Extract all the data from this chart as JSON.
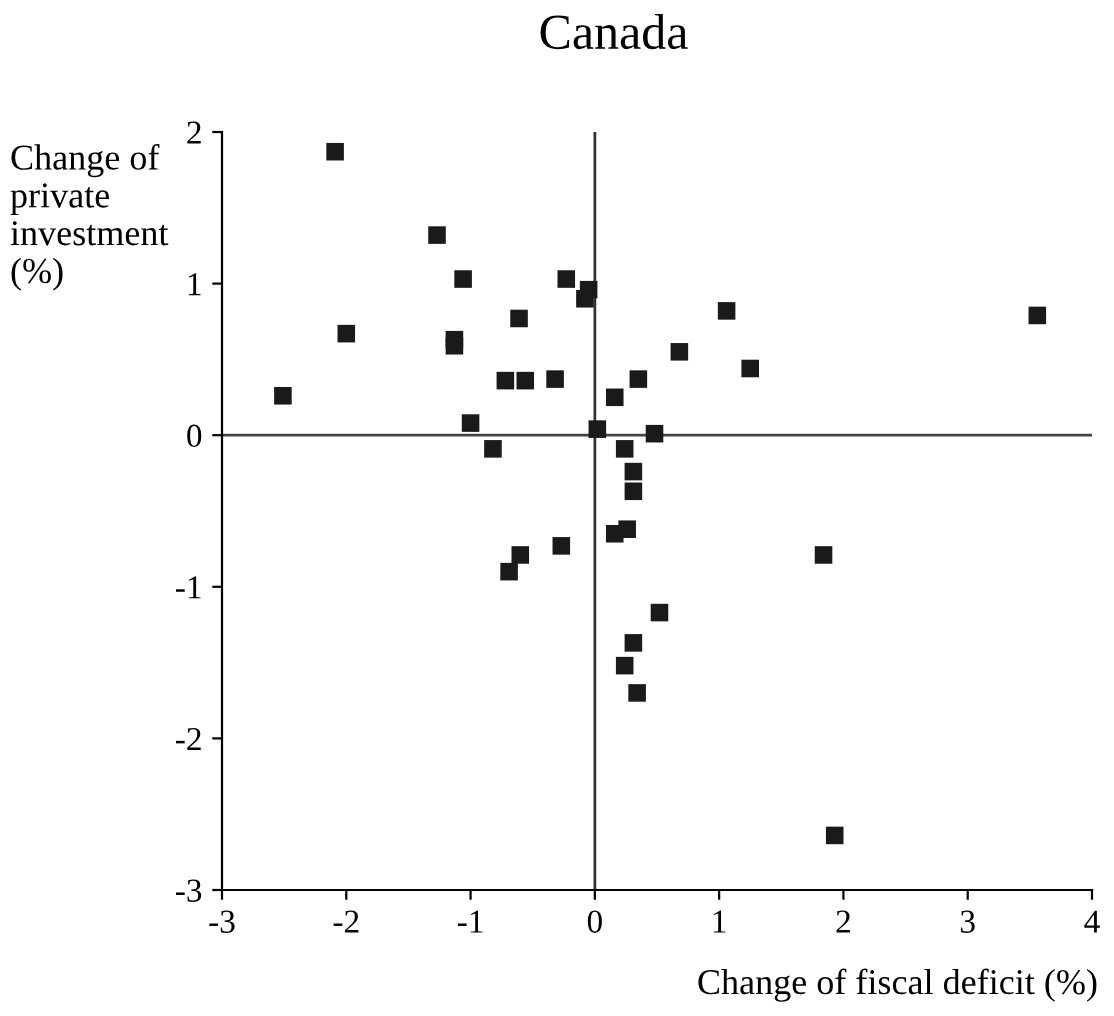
{
  "chart_data": {
    "type": "scatter",
    "title": "Canada",
    "xlabel": "Change of fiscal deficit (%)",
    "ylabel": "Change of\nprivate\ninvestment\n(%)",
    "x": [
      -2.09,
      -1.27,
      -1.06,
      -2.0,
      -1.13,
      -1.13,
      -2.51,
      -0.61,
      -0.23,
      -0.05,
      -0.08,
      -1.0,
      -0.82,
      -0.72,
      -0.56,
      -0.32,
      0.02,
      0.16,
      0.35,
      0.48,
      0.68,
      1.06,
      1.25,
      3.56,
      0.24,
      0.31,
      0.31,
      0.16,
      0.26,
      -0.27,
      -0.6,
      -0.69,
      1.84,
      0.52,
      0.31,
      0.24,
      0.34,
      1.93
    ],
    "values": [
      1.87,
      1.32,
      1.03,
      0.67,
      0.63,
      0.59,
      0.26,
      0.77,
      1.03,
      0.96,
      0.9,
      0.08,
      -0.09,
      0.36,
      0.36,
      0.37,
      0.04,
      0.25,
      0.37,
      0.01,
      0.55,
      0.82,
      0.44,
      0.79,
      -0.09,
      -0.24,
      -0.37,
      -0.65,
      -0.62,
      -0.73,
      -0.79,
      -0.9,
      -0.79,
      -1.17,
      -1.37,
      -1.52,
      -1.7,
      -2.64
    ],
    "color": "#1a1a1a",
    "marker": "square",
    "xlim": [
      -3,
      4
    ],
    "xticks": [
      -3,
      -2,
      -1,
      0,
      1,
      2,
      3,
      4
    ],
    "ylim": [
      -3,
      2
    ],
    "yticks": [
      -3,
      -2,
      -1,
      0,
      1,
      2
    ],
    "ref_lines": [
      {
        "axis": "x",
        "value": 0,
        "color": "#333333"
      },
      {
        "axis": "y",
        "value": 0,
        "color": "#444444"
      }
    ],
    "grid": false,
    "legend": false
  }
}
